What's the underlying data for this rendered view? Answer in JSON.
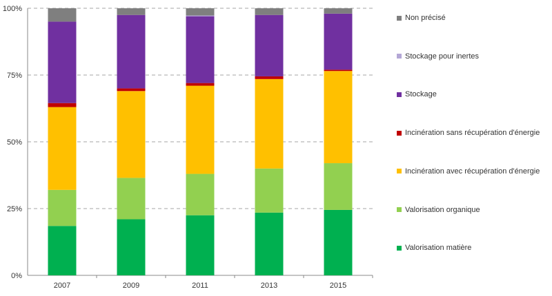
{
  "chart_data": {
    "type": "bar",
    "stacked": true,
    "categories": [
      "2007",
      "2009",
      "2011",
      "2013",
      "2015"
    ],
    "ylim": [
      0,
      100
    ],
    "yticks": [
      "0%",
      "25%",
      "50%",
      "75%",
      "100%"
    ],
    "ytick_values": [
      0,
      25,
      50,
      75,
      100
    ],
    "grid": "horizontal dashed",
    "legend_position": "right",
    "series": [
      {
        "name": "Valorisation matière",
        "color": "#00b050",
        "values": [
          18.5,
          21,
          22.5,
          23.5,
          24.5
        ]
      },
      {
        "name": "Valorisation organique",
        "color": "#92d050",
        "values": [
          13.5,
          15.5,
          15.5,
          16.5,
          17.5
        ]
      },
      {
        "name": "Incinération avec récupération d'énergie",
        "color": "#ffc000",
        "values": [
          31,
          32.5,
          33,
          33.5,
          34.5
        ]
      },
      {
        "name": "Incinération sans récupération d'énergie",
        "color": "#c00000",
        "values": [
          1.5,
          1,
          1,
          1,
          0.5
        ]
      },
      {
        "name": "Stockage",
        "color": "#7030a0",
        "values": [
          30.5,
          27.5,
          25,
          23,
          21
        ]
      },
      {
        "name": "Stockage pour inertes",
        "color": "#b4a7d6",
        "values": [
          0,
          0,
          0.3,
          0,
          0
        ]
      },
      {
        "name": "Non précisé",
        "color": "#7f7f7f",
        "values": [
          5,
          2.5,
          2.7,
          2.5,
          2
        ]
      }
    ]
  }
}
